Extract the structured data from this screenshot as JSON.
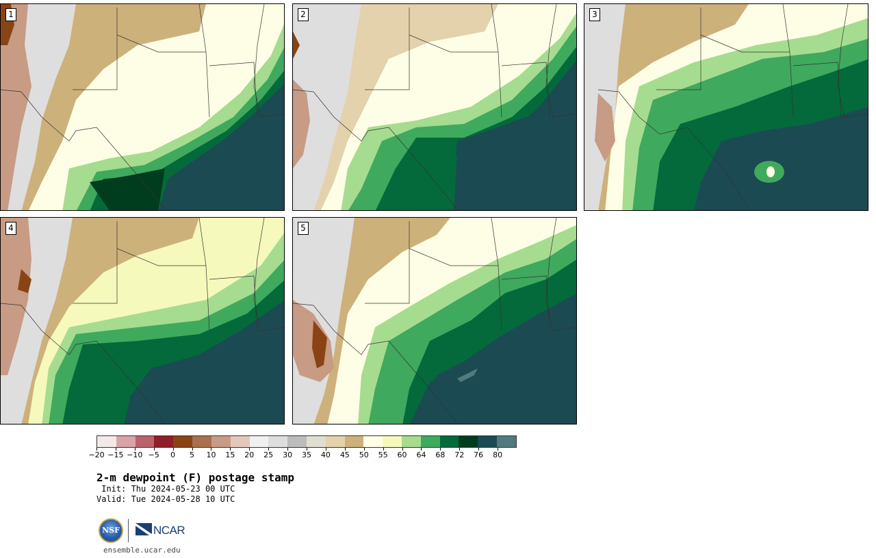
{
  "panels": [
    {
      "label": "1"
    },
    {
      "label": "2"
    },
    {
      "label": "3"
    },
    {
      "label": "4"
    },
    {
      "label": "5"
    }
  ],
  "colorbar": {
    "colors": [
      "#f3e9e9",
      "#d9a3aa",
      "#b9626b",
      "#8e1e2a",
      "#8a4414",
      "#a8704d",
      "#c79b84",
      "#e4c9bb",
      "#f1f1f1",
      "#dedede",
      "#bcbcbc",
      "#e0ded3",
      "#e3d2ac",
      "#cdb17b",
      "#fefee6",
      "#f6f9bc",
      "#a6dc8f",
      "#3fa95d",
      "#046a3b",
      "#003c1e",
      "#1b4a52",
      "#507a7e"
    ],
    "ticks": [
      "−20",
      "−15",
      "−10",
      "−5",
      "0",
      "5",
      "10",
      "15",
      "20",
      "25",
      "30",
      "35",
      "40",
      "45",
      "50",
      "55",
      "60",
      "64",
      "68",
      "72",
      "76",
      "80"
    ]
  },
  "title": "2-m dewpoint (F) postage stamp",
  "init": " Init: Thu 2024-05-23 00 UTC",
  "valid": "Valid: Tue 2024-05-28 10 UTC",
  "logos": {
    "nsf": "NSF",
    "ncar": "NCAR"
  },
  "site": "ensemble.ucar.edu"
}
